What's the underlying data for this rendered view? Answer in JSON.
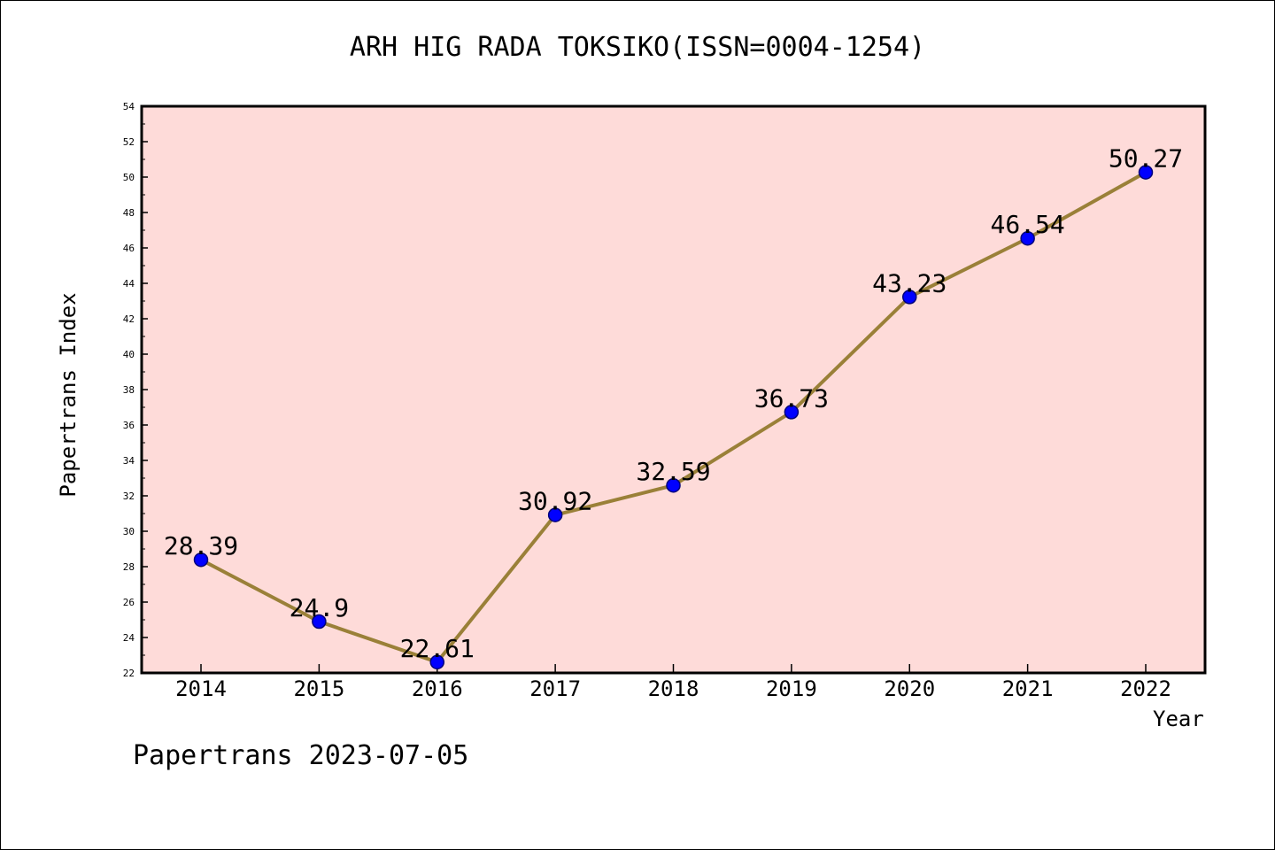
{
  "chart_data": {
    "type": "line",
    "title": "ARH HIG RADA TOKSIKO(ISSN=0004-1254)",
    "xlabel": "Year",
    "ylabel": "Papertrans Index",
    "categories": [
      "2014",
      "2015",
      "2016",
      "2017",
      "2018",
      "2019",
      "2020",
      "2021",
      "2022"
    ],
    "series": [
      {
        "values": [
          28.39,
          24.9,
          22.61,
          30.92,
          32.59,
          36.73,
          43.23,
          46.54,
          50.27
        ],
        "labels": [
          "28.39",
          "24.9",
          "22.61",
          "30.92",
          "32.59",
          "36.73",
          "43.23",
          "46.54",
          "50.27"
        ]
      }
    ],
    "ylim": [
      22,
      54
    ],
    "yticks": [
      "22",
      "24",
      "26",
      "28",
      "30",
      "32",
      "34",
      "36",
      "38",
      "40",
      "42",
      "44",
      "46",
      "48",
      "50",
      "52",
      "54"
    ],
    "grid": false,
    "colors": {
      "plot_background": "#fedbd9",
      "line": "#9a8038",
      "marker_fill": "#0000ff",
      "marker_stroke": "#00007a"
    }
  },
  "footer": "Papertrans 2023-07-05"
}
